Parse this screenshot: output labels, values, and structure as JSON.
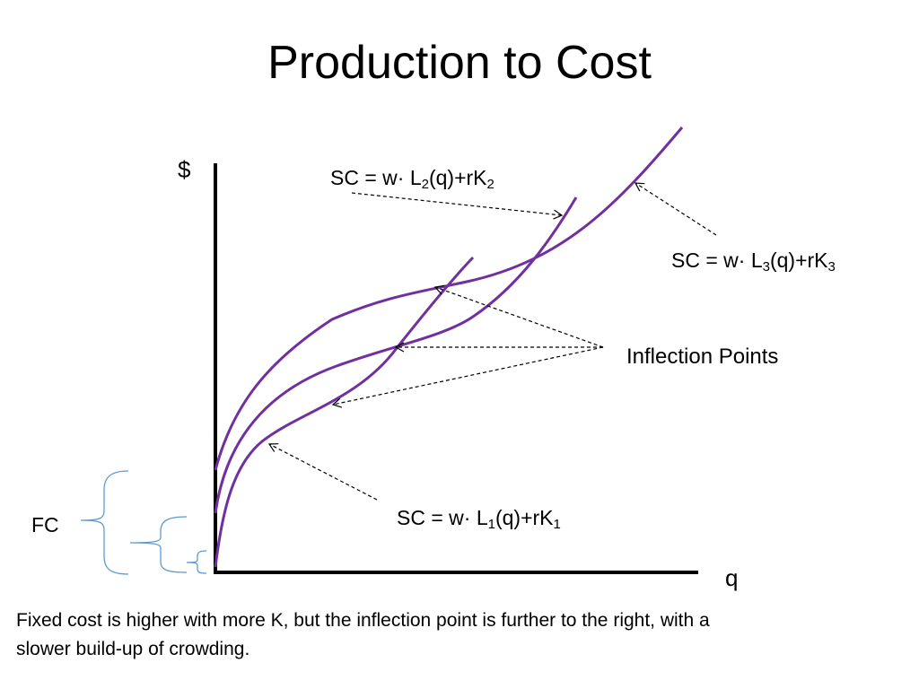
{
  "title": "Production to Cost",
  "axes": {
    "y_label": "$",
    "x_label": "q"
  },
  "curves": [
    {
      "name": "SC1",
      "label_prefix": "SC = w· L",
      "labor_sub": "1",
      "label_mid": "(q)+rK",
      "capital_sub": "1",
      "color": "#7030a0"
    },
    {
      "name": "SC2",
      "label_prefix": "SC = w· L",
      "labor_sub": "2",
      "label_mid": "(q)+rK",
      "capital_sub": "2",
      "color": "#7030a0"
    },
    {
      "name": "SC3",
      "label_prefix": "SC = w· L",
      "labor_sub": "3",
      "label_mid": "(q)+rK",
      "capital_sub": "3",
      "color": "#7030a0"
    }
  ],
  "inflection_label": "Inflection Points",
  "fc_label": "FC",
  "brace_color": "#5b9bd5",
  "caption": "Fixed cost is higher with more K, but the inflection point is further to the right, with a slower build-up of crowding."
}
